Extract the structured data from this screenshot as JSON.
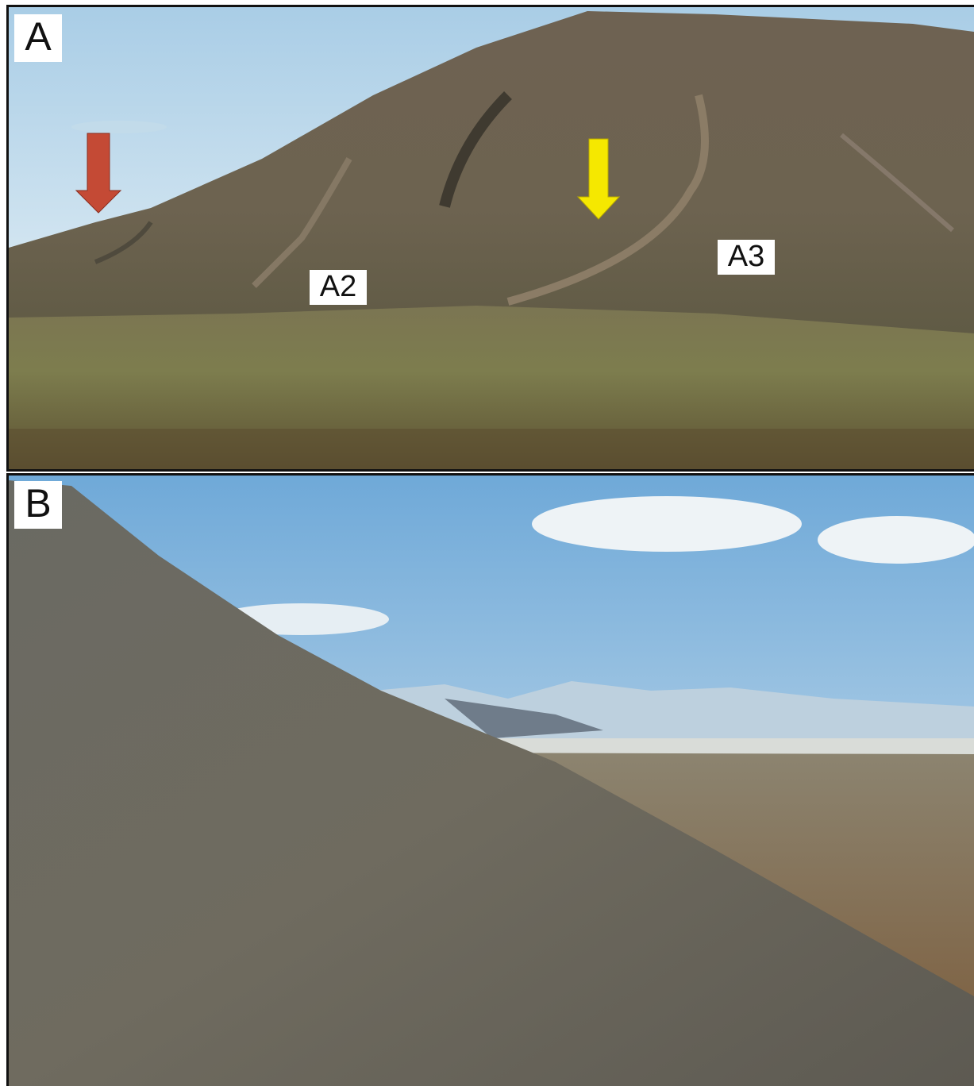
{
  "panels": [
    {
      "label": "A",
      "annotations": [
        "A2",
        "A3"
      ]
    },
    {
      "label": "B"
    }
  ]
}
